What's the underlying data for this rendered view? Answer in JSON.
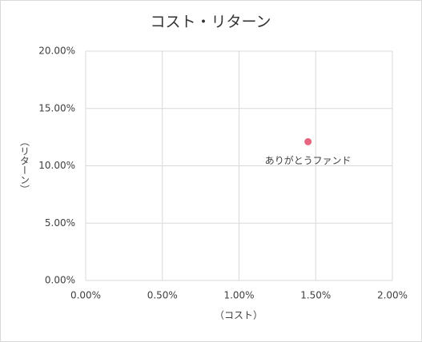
{
  "chart_data": {
    "type": "scatter",
    "title": "コスト・リターン",
    "x_label": "（コスト）",
    "y_label": "（リターン）",
    "series": [
      {
        "name": "ありがとうファンド",
        "color": "#e8657f",
        "x": [
          1.45
        ],
        "values": [
          12.1
        ]
      }
    ],
    "xlim": [
      0,
      2
    ],
    "ylim": [
      0,
      20
    ],
    "xticks": [
      {
        "value": 0,
        "label": "0.00%"
      },
      {
        "value": 0.5,
        "label": "0.50%"
      },
      {
        "value": 1,
        "label": "1.00%"
      },
      {
        "value": 1.5,
        "label": "1.50%"
      },
      {
        "value": 2,
        "label": "2.00%"
      }
    ],
    "yticks": [
      {
        "value": 0,
        "label": "0.00%"
      },
      {
        "value": 5,
        "label": "5.00%"
      },
      {
        "value": 10,
        "label": "10.00%"
      },
      {
        "value": 15,
        "label": "15.00%"
      },
      {
        "value": 20,
        "label": "20.00%"
      }
    ],
    "grid": true
  }
}
